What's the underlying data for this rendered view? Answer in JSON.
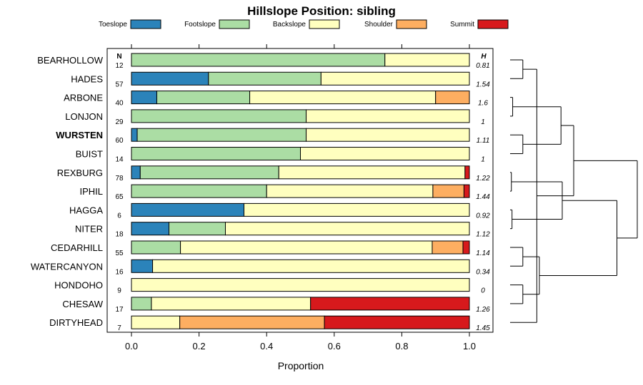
{
  "chart_data": {
    "type": "bar",
    "stacked": true,
    "orientation": "horizontal",
    "title": "Hillslope Position: sibling",
    "xlabel": "Proportion",
    "xlim": [
      0,
      1
    ],
    "xticks": [
      0.0,
      0.2,
      0.4,
      0.6,
      0.8,
      1.0
    ],
    "xtick_labels": [
      "0.0",
      "0.2",
      "0.4",
      "0.6",
      "0.8",
      "1.0"
    ],
    "legend_position": "top",
    "n_header": "N",
    "h_header": "H",
    "highlighted": "WURSTEN",
    "series": [
      {
        "name": "Toeslope",
        "color": "#2b83ba"
      },
      {
        "name": "Footslope",
        "color": "#abdda4"
      },
      {
        "name": "Backslope",
        "color": "#ffffbf"
      },
      {
        "name": "Shoulder",
        "color": "#fdae61"
      },
      {
        "name": "Summit",
        "color": "#d7191c"
      }
    ],
    "categories": [
      "BEARHOLLOW",
      "HADES",
      "ARBONE",
      "LONJON",
      "WURSTEN",
      "BUIST",
      "REXBURG",
      "IPHIL",
      "HAGGA",
      "NITER",
      "CEDARHILL",
      "WATERCANYON",
      "HONDOHO",
      "CHESAW",
      "DIRTYHEAD"
    ],
    "n": [
      "12",
      "57",
      "40",
      "29",
      "60",
      "14",
      "78",
      "65",
      "6",
      "18",
      "55",
      "16",
      "9",
      "17",
      "7"
    ],
    "h": [
      "0.81",
      "1.54",
      "1.6",
      "1",
      "1.11",
      "1",
      "1.22",
      "1.44",
      "0.92",
      "1.12",
      "1.14",
      "0.34",
      "0",
      "1.26",
      "1.45"
    ],
    "values": [
      [
        0.0,
        0.75,
        0.25,
        0.0,
        0.0
      ],
      [
        0.228,
        0.333,
        0.439,
        0.0,
        0.0
      ],
      [
        0.075,
        0.275,
        0.55,
        0.1,
        0.0
      ],
      [
        0.0,
        0.517,
        0.483,
        0.0,
        0.0
      ],
      [
        0.017,
        0.5,
        0.483,
        0.0,
        0.0
      ],
      [
        0.0,
        0.5,
        0.5,
        0.0,
        0.0
      ],
      [
        0.026,
        0.41,
        0.551,
        0.0,
        0.013
      ],
      [
        0.0,
        0.4,
        0.492,
        0.092,
        0.016
      ],
      [
        0.333,
        0.0,
        0.667,
        0.0,
        0.0
      ],
      [
        0.111,
        0.167,
        0.722,
        0.0,
        0.0
      ],
      [
        0.0,
        0.145,
        0.745,
        0.091,
        0.019
      ],
      [
        0.0625,
        0.0,
        0.9375,
        0.0,
        0.0
      ],
      [
        0.0,
        0.0,
        1.0,
        0.0,
        0.0
      ],
      [
        0.0,
        0.059,
        0.471,
        0.0,
        0.47
      ],
      [
        0.0,
        0.0,
        0.143,
        0.428,
        0.429
      ]
    ],
    "dendrogram": {
      "merges": [
        [
          0,
          1,
          0.1
        ],
        [
          2,
          3,
          0.02
        ],
        [
          4,
          5,
          0.1
        ],
        [
          6,
          7,
          0.01
        ],
        [
          8,
          9,
          0.015
        ],
        [
          10,
          11,
          0.1
        ],
        [
          12,
          13,
          0.1
        ],
        [
          14,
          15,
          0.21
        ],
        [
          16,
          17,
          0.4
        ],
        [
          18,
          19,
          0.41
        ],
        [
          20,
          21,
          0.23
        ],
        [
          22,
          23,
          0.5
        ],
        [
          24,
          25,
          0.84
        ],
        [
          26,
          27,
          1.0
        ]
      ]
    }
  }
}
